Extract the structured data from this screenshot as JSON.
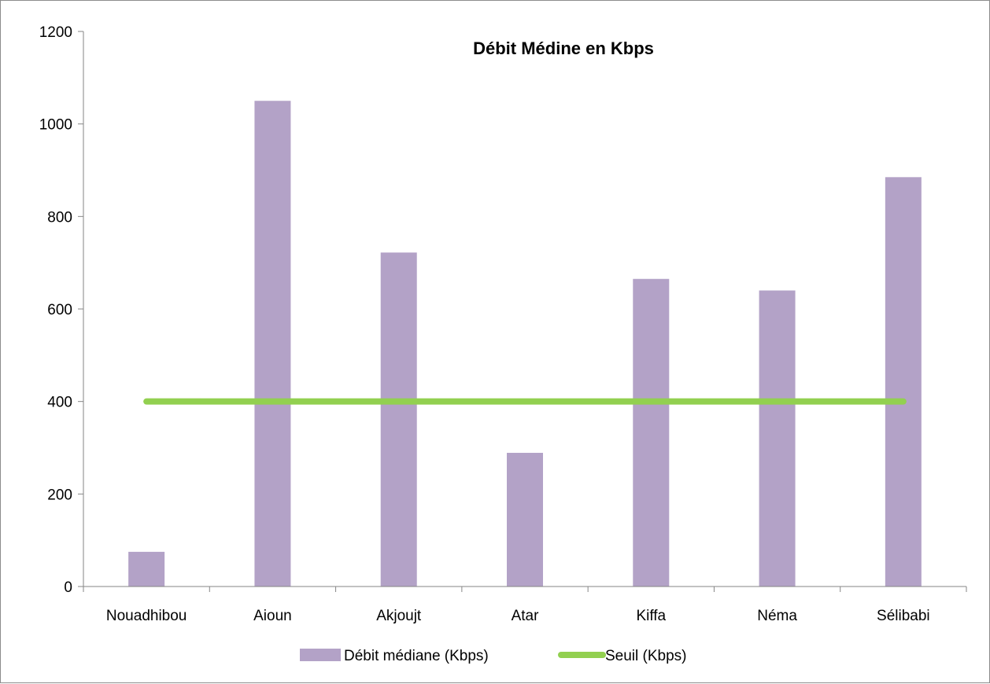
{
  "chart_data": {
    "type": "bar",
    "title": "Débit Médine en Kbps",
    "categories": [
      "Nouadhibou",
      "Aioun",
      "Akjoujt",
      "Atar",
      "Kiffa",
      "Néma",
      "Sélibabi"
    ],
    "series": [
      {
        "name": "Débit médiane (Kbps)",
        "kind": "bar",
        "color": "#b3a2c7",
        "values": [
          75,
          1050,
          722,
          289,
          665,
          640,
          885
        ]
      },
      {
        "name": "Seuil (Kbps)",
        "kind": "line",
        "color": "#92d050",
        "values": [
          400,
          400,
          400,
          400,
          400,
          400,
          400
        ]
      }
    ],
    "ylim": [
      0,
      1200
    ],
    "yticks": [
      0,
      200,
      400,
      600,
      800,
      1000,
      1200
    ],
    "grid": false,
    "legend": "bottom"
  }
}
